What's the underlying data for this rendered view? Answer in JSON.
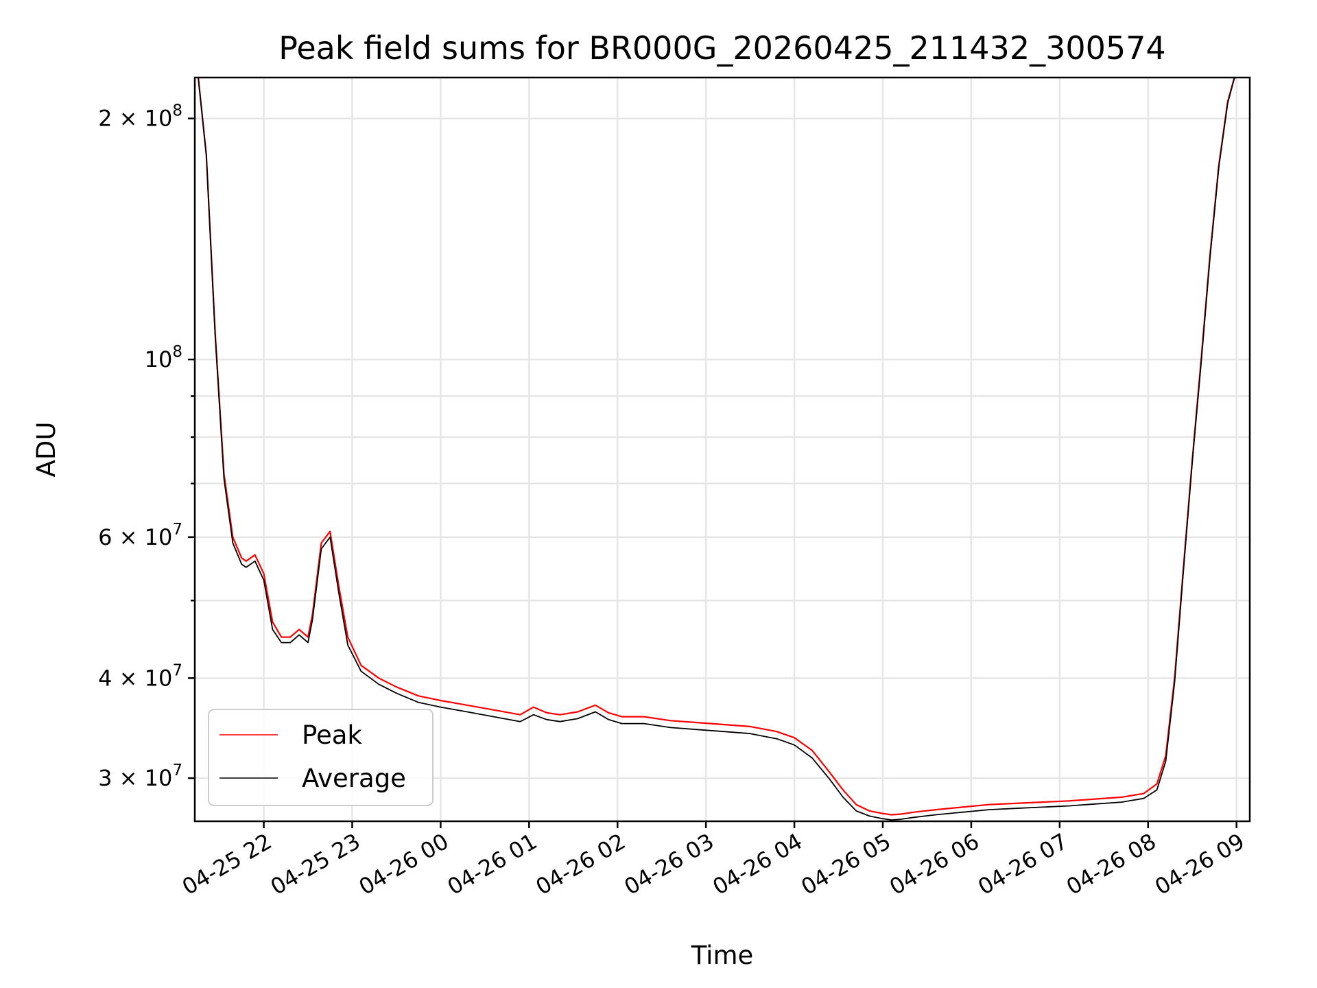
{
  "chart_data": {
    "type": "line",
    "title": "Peak field sums for BR000G_20260425_211432_300574",
    "xlabel": "Time",
    "ylabel": "ADU",
    "y_scale": "log",
    "xlim_hours_since_start": [
      21.22,
      33.15
    ],
    "ylim": [
      26500000,
      225000000
    ],
    "x_tick_hours": [
      22,
      23,
      24,
      25,
      26,
      27,
      28,
      29,
      30,
      31,
      32,
      33
    ],
    "x_tick_labels": [
      "04-25 22",
      "04-25 23",
      "04-26 00",
      "04-26 01",
      "04-26 02",
      "04-26 03",
      "04-26 04",
      "04-26 05",
      "04-26 06",
      "04-26 07",
      "04-26 08",
      "04-26 09"
    ],
    "y_major_ticks": [
      {
        "value": 30000000,
        "mantissa": "3",
        "exp": "7",
        "has_mantissa": true
      },
      {
        "value": 40000000,
        "mantissa": "4",
        "exp": "7",
        "has_mantissa": true
      },
      {
        "value": 60000000,
        "mantissa": "6",
        "exp": "7",
        "has_mantissa": true
      },
      {
        "value": 100000000,
        "mantissa": "",
        "exp": "8",
        "has_mantissa": false
      },
      {
        "value": 200000000,
        "mantissa": "2",
        "exp": "8",
        "has_mantissa": true
      }
    ],
    "y_minor_ticks": [
      50000000,
      70000000,
      80000000,
      90000000
    ],
    "legend": {
      "placement": "lower-left"
    },
    "series": [
      {
        "name": "Peak",
        "color": "#ff0000",
        "x_hours": [
          21.25,
          21.35,
          21.45,
          21.55,
          21.65,
          21.75,
          21.8,
          21.9,
          22.0,
          22.1,
          22.2,
          22.3,
          22.4,
          22.5,
          22.55,
          22.65,
          22.75,
          22.85,
          22.95,
          23.1,
          23.3,
          23.5,
          23.75,
          24.0,
          24.3,
          24.6,
          24.9,
          25.05,
          25.2,
          25.35,
          25.55,
          25.75,
          25.9,
          26.05,
          26.3,
          26.6,
          26.9,
          27.2,
          27.5,
          27.8,
          28.0,
          28.2,
          28.4,
          28.55,
          28.7,
          28.85,
          29.0,
          29.1,
          29.2,
          29.35,
          29.6,
          29.9,
          30.2,
          30.5,
          30.8,
          31.1,
          31.4,
          31.7,
          31.95,
          32.1,
          32.2,
          32.3,
          32.4,
          32.5,
          32.6,
          32.7,
          32.8,
          32.9,
          33.0
        ],
        "values": [
          230000000,
          180000000,
          108000000,
          72000000,
          60000000,
          56500000,
          56000000,
          57000000,
          54000000,
          47000000,
          45000000,
          45000000,
          46000000,
          45000000,
          48000000,
          59000000,
          61000000,
          52000000,
          45000000,
          41500000,
          40000000,
          39000000,
          38000000,
          37500000,
          37000000,
          36500000,
          36000000,
          36800000,
          36200000,
          36000000,
          36300000,
          37000000,
          36200000,
          35800000,
          35800000,
          35400000,
          35200000,
          35000000,
          34800000,
          34300000,
          33700000,
          32500000,
          30500000,
          29000000,
          27800000,
          27300000,
          27100000,
          27000000,
          27050000,
          27200000,
          27400000,
          27600000,
          27800000,
          27900000,
          28000000,
          28100000,
          28250000,
          28400000,
          28700000,
          29500000,
          32000000,
          40000000,
          55000000,
          75000000,
          100000000,
          135000000,
          175000000,
          210000000,
          230000000
        ]
      },
      {
        "name": "Average",
        "color": "#000000",
        "x_hours": [
          21.25,
          21.35,
          21.45,
          21.55,
          21.65,
          21.75,
          21.8,
          21.9,
          22.0,
          22.1,
          22.2,
          22.3,
          22.4,
          22.5,
          22.55,
          22.65,
          22.75,
          22.85,
          22.95,
          23.1,
          23.3,
          23.5,
          23.75,
          24.0,
          24.3,
          24.6,
          24.9,
          25.05,
          25.2,
          25.35,
          25.55,
          25.75,
          25.9,
          26.05,
          26.3,
          26.6,
          26.9,
          27.2,
          27.5,
          27.8,
          28.0,
          28.2,
          28.4,
          28.55,
          28.7,
          28.85,
          29.0,
          29.1,
          29.2,
          29.35,
          29.6,
          29.9,
          30.2,
          30.5,
          30.8,
          31.1,
          31.4,
          31.7,
          31.95,
          32.1,
          32.2,
          32.3,
          32.4,
          32.5,
          32.6,
          32.7,
          32.8,
          32.9,
          33.0
        ],
        "values": [
          230000000,
          180000000,
          107000000,
          71000000,
          59000000,
          55500000,
          55000000,
          56000000,
          53000000,
          46000000,
          44300000,
          44300000,
          45300000,
          44300000,
          47300000,
          58000000,
          60000000,
          51000000,
          44000000,
          40800000,
          39300000,
          38300000,
          37300000,
          36800000,
          36300000,
          35800000,
          35300000,
          36000000,
          35500000,
          35300000,
          35600000,
          36300000,
          35500000,
          35100000,
          35100000,
          34700000,
          34500000,
          34300000,
          34100000,
          33600000,
          33000000,
          31800000,
          29900000,
          28400000,
          27300000,
          26900000,
          26700000,
          26600000,
          26650000,
          26800000,
          27000000,
          27200000,
          27400000,
          27500000,
          27600000,
          27700000,
          27850000,
          28000000,
          28300000,
          29000000,
          31500000,
          39500000,
          54500000,
          74500000,
          99000000,
          134000000,
          174000000,
          209000000,
          230000000
        ]
      }
    ]
  }
}
